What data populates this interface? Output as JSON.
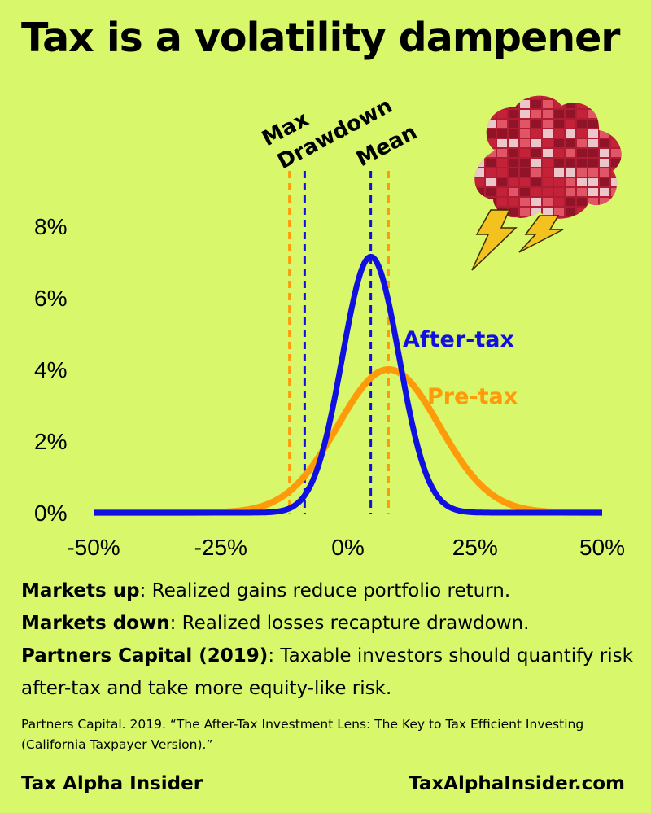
{
  "title": "Tax is a volatility dampener",
  "annotations": {
    "max_drawdown": [
      "Max",
      "Drawdown"
    ],
    "mean": "Mean"
  },
  "chart_data": {
    "type": "line",
    "x_ticks": [
      "-50%",
      "-25%",
      "0%",
      "25%",
      "50%"
    ],
    "y_ticks": [
      "0%",
      "2%",
      "4%",
      "6%",
      "8%"
    ],
    "xlim": [
      -50,
      50
    ],
    "ylim": [
      0,
      8
    ],
    "series": [
      {
        "name": "After-tax",
        "color": "#1010e0",
        "mean": 4.5,
        "sd": 5.6,
        "peak": 7.15,
        "max_drawdown": -8.5
      },
      {
        "name": "Pre-tax",
        "color": "#ff9a0a",
        "mean": 8,
        "sd": 10,
        "peak": 4.0,
        "max_drawdown": -11.5
      }
    ],
    "grid": false,
    "legend": "inline-right"
  },
  "notes": [
    {
      "bold": "Markets up",
      "text": ": Realized gains reduce portfolio return."
    },
    {
      "bold": "Markets down",
      "text": ": Realized losses recapture drawdown."
    },
    {
      "bold": "Partners Capital (2019)",
      "text": ": Taxable investors should quantify risk after-tax and take more equity-like risk."
    }
  ],
  "citation": "Partners Capital. 2019. “The After-Tax Investment Lens: The Key to Tax Efficient Investing (California Taxpayer Version).”",
  "footer": {
    "brand": "Tax Alpha Insider",
    "url": "TaxAlphaInsider.com"
  },
  "decoration": {
    "cloud_icon": "stock-heatmap-storm-cloud-icon",
    "cloud_colors": [
      "#c4233a",
      "#8e1428",
      "#e35a6a",
      "#ffffff"
    ],
    "bolt_color": "#f3c21f"
  }
}
